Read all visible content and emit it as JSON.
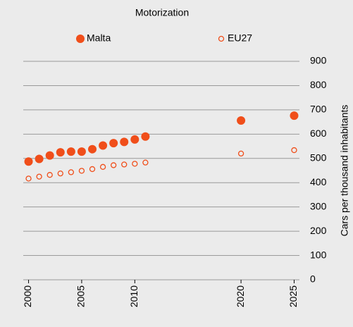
{
  "chart_data": {
    "type": "scatter",
    "title": "Motorization",
    "y_label": "Cars per thousand inhabitants",
    "series": [
      {
        "name": "Malta",
        "color": "#f04e1a",
        "filled": true,
        "x": [
          2000,
          2001,
          2002,
          2003,
          2004,
          2005,
          2006,
          2007,
          2008,
          2009,
          2010,
          2011,
          2020,
          2025
        ],
        "values": [
          487,
          498,
          512,
          525,
          528,
          528,
          538,
          553,
          563,
          568,
          578,
          590,
          656,
          676
        ]
      },
      {
        "name": "EU27",
        "color": "#f04e1a",
        "filled": false,
        "x": [
          2000,
          2001,
          2002,
          2003,
          2004,
          2005,
          2006,
          2007,
          2008,
          2009,
          2010,
          2011,
          2020,
          2025
        ],
        "values": [
          417,
          425,
          432,
          438,
          443,
          449,
          456,
          465,
          472,
          475,
          478,
          483,
          520,
          534
        ]
      }
    ],
    "xlim": [
      1999.5,
      2025.5
    ],
    "xticks": [
      2000,
      2005,
      2010,
      2020,
      2025
    ],
    "ylim": [
      0,
      900
    ],
    "yticks": [
      0,
      100,
      200,
      300,
      400,
      500,
      600,
      700,
      800,
      900
    ],
    "grid": true,
    "legend": "top"
  }
}
